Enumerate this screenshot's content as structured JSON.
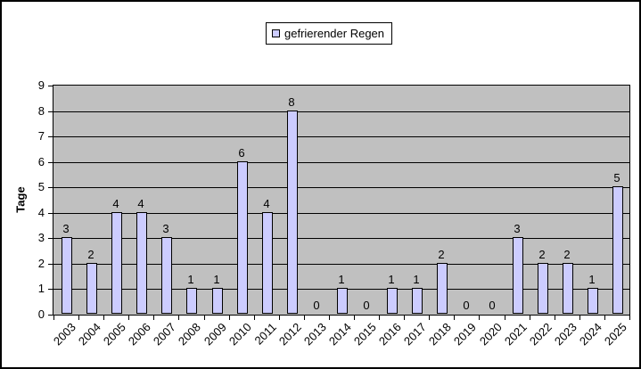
{
  "chart_data": {
    "type": "bar",
    "categories": [
      "2003",
      "2004",
      "2005",
      "2006",
      "2007",
      "2008",
      "2009",
      "2010",
      "2011",
      "2012",
      "2013",
      "2014",
      "2015",
      "2016",
      "2017",
      "2018",
      "2019",
      "2020",
      "2021",
      "2022",
      "2023",
      "2024",
      "2025"
    ],
    "series": [
      {
        "name": "gefrierender Regen",
        "values": [
          3,
          2,
          4,
          4,
          3,
          1,
          1,
          6,
          4,
          8,
          0,
          1,
          0,
          1,
          1,
          2,
          0,
          0,
          3,
          2,
          2,
          1,
          5
        ]
      }
    ],
    "title": "",
    "xlabel": "",
    "ylabel": "Tage",
    "ylim": [
      0,
      9
    ],
    "ytick_step": 1,
    "grid": true,
    "legend_position": "top-center",
    "data_labels": true,
    "colors": {
      "plot_bg": "#C0C0C0",
      "bar_fill": "#CCCCFF",
      "bar_border": "#000000",
      "gridline": "#000000",
      "text": "#000000",
      "outer_bg": "#FFFFFF",
      "frame_border": "#000000"
    }
  }
}
